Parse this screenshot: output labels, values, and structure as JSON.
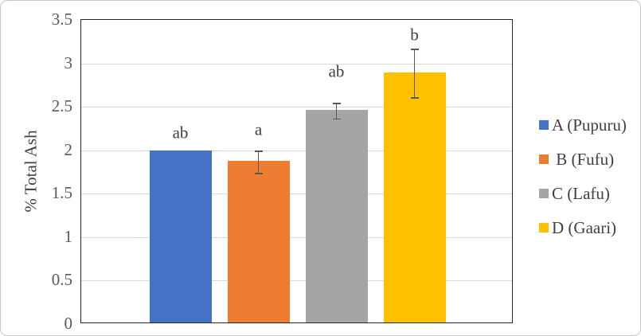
{
  "figure": {
    "background": "#FFFFFF",
    "border_color": "#C9C9C9"
  },
  "colors": {
    "grid": "#D9D9D9",
    "plot_border": "#262626",
    "axis_text": "#595959",
    "label_text": "#404040",
    "error_bar": "#595959"
  },
  "chart_data": {
    "type": "bar",
    "title": "",
    "xlabel": "",
    "ylabel": "% Total Ash",
    "ylim": [
      0,
      3.5
    ],
    "ytick_labels": [
      "0",
      "0.5",
      "1",
      "1.5",
      "2",
      "2.5",
      "3",
      "3.5"
    ],
    "ytick_values": [
      0,
      0.5,
      1,
      1.5,
      2,
      2.5,
      3,
      3.5
    ],
    "grid": true,
    "legend_position": "right",
    "categories": [
      ""
    ],
    "series": [
      {
        "name": "A (Pupuru)",
        "value": 1.98,
        "error": 0,
        "color": "#4472C4",
        "sig_letter": "ab",
        "letter_y": 2.2
      },
      {
        "name": " B (Fufu)",
        "value": 1.86,
        "error": 0.13,
        "color": "#ED7D31",
        "sig_letter": "a",
        "letter_y": 2.24
      },
      {
        "name": "C (Lafu)",
        "value": 2.45,
        "error": 0.09,
        "color": "#A5A5A5",
        "sig_letter": "ab",
        "letter_y": 2.9
      },
      {
        "name": "D (Gaari)",
        "value": 2.88,
        "error": 0.28,
        "color": "#FFC000",
        "sig_letter": "b",
        "letter_y": 3.33
      }
    ]
  }
}
